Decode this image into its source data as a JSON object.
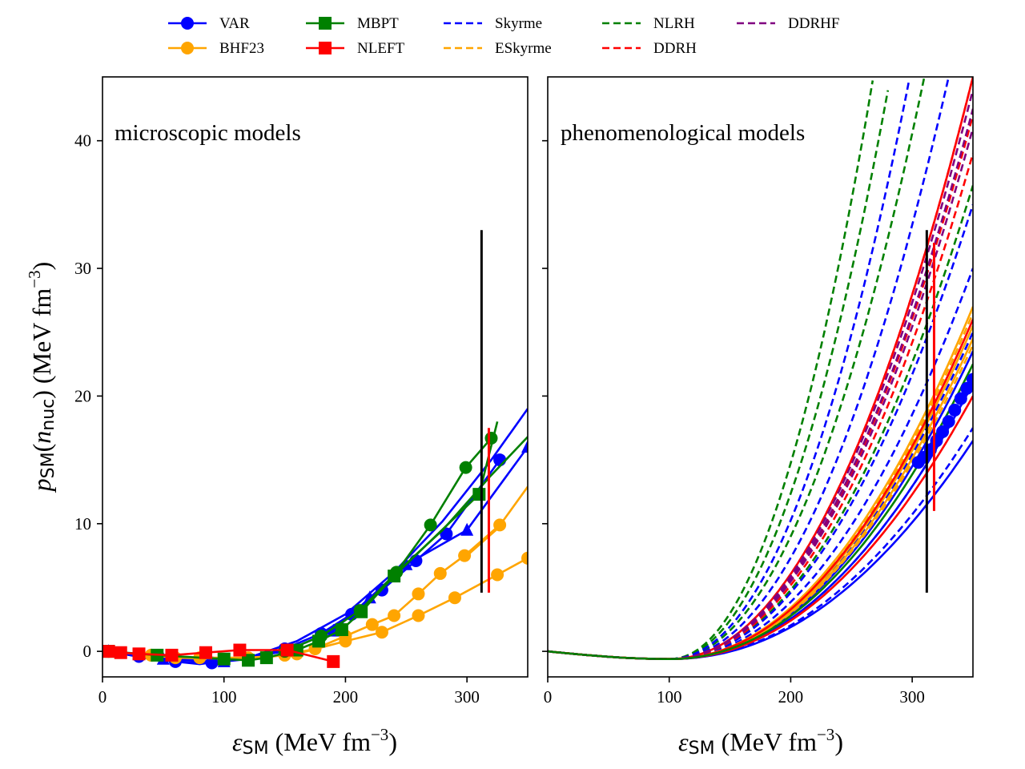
{
  "legend": {
    "placement": "top-center",
    "columns": 5,
    "entries": [
      {
        "label": "VAR",
        "color": "#0000ff",
        "style": "solid",
        "marker": "circle"
      },
      {
        "label": "BHF23",
        "color": "#ffa500",
        "style": "solid",
        "marker": "circle"
      },
      {
        "label": "MBPT",
        "color": "#008000",
        "style": "solid",
        "marker": "square"
      },
      {
        "label": "NLEFT",
        "color": "#ff0000",
        "style": "solid",
        "marker": "square"
      },
      {
        "label": "Skyrme",
        "color": "#0000ff",
        "style": "dashed",
        "marker": "none"
      },
      {
        "label": "ESkyrme",
        "color": "#ffa500",
        "style": "dashed",
        "marker": "none"
      },
      {
        "label": "NLRH",
        "color": "#008000",
        "style": "dashed",
        "marker": "none"
      },
      {
        "label": "DDRH",
        "color": "#ff0000",
        "style": "dashed",
        "marker": "none"
      },
      {
        "label": "DDRHF",
        "color": "#800080",
        "style": "dashed",
        "marker": "none"
      }
    ]
  },
  "axes": {
    "xlabel_sym": "ε",
    "xlabel_sub": "SM",
    "xlabel_unit": " (MeV fm",
    "xlabel_exp": "−3",
    "xlabel_close": ")",
    "ylabel_sym": "p",
    "ylabel_sub": "SM",
    "ylabel_arg_open": "(",
    "ylabel_arg": "n",
    "ylabel_arg_sub": "nuc",
    "ylabel_arg_close": ")",
    "ylabel_unit": " (MeV fm",
    "ylabel_exp": "−3",
    "ylabel_close": ")",
    "xticks": [
      "0",
      "100",
      "200",
      "300"
    ],
    "yticks": [
      "0",
      "10",
      "20",
      "30",
      "40"
    ]
  },
  "chart_data": [
    {
      "type": "line",
      "title": "microscopic models",
      "xlim": [
        0,
        350
      ],
      "ylim": [
        -2,
        45
      ],
      "xticks": [
        0,
        100,
        200,
        300
      ],
      "yticks": [
        0,
        10,
        20,
        30,
        40
      ],
      "vlines": [
        {
          "x": 312,
          "y0": 4.6,
          "y1": 33.0,
          "color": "#000000"
        },
        {
          "x": 318,
          "y0": 4.6,
          "y1": 17.5,
          "color": "#ff0000"
        }
      ],
      "series": [
        {
          "model": "VAR",
          "color": "#0000ff",
          "style": "solid",
          "marker": "circle",
          "x": [
            5,
            30,
            60,
            90,
            120,
            150,
            180,
            205,
            230,
            258,
            283,
            327
          ],
          "y": [
            0,
            -0.4,
            -0.8,
            -0.9,
            -0.6,
            0.2,
            1.4,
            2.9,
            4.8,
            7.1,
            9.2,
            15.0
          ]
        },
        {
          "model": "VAR",
          "color": "#0000ff",
          "style": "solid",
          "marker": "none",
          "x": [
            5,
            40,
            80,
            120,
            160,
            200,
            240,
            280,
            320,
            350
          ],
          "y": [
            0,
            -0.6,
            -1.0,
            -0.5,
            0.8,
            2.9,
            6.2,
            10.2,
            15.0,
            19.0
          ]
        },
        {
          "model": "VAR",
          "color": "#0000ff",
          "style": "solid",
          "marker": "triangle",
          "x": [
            5,
            50,
            100,
            150,
            190,
            220,
            250,
            300,
            350
          ],
          "y": [
            0,
            -0.6,
            -0.8,
            0.0,
            1.6,
            4.2,
            6.8,
            9.5,
            16.0
          ]
        },
        {
          "model": "BHF23",
          "color": "#ffa500",
          "style": "solid",
          "marker": "circle",
          "x": [
            5,
            40,
            80,
            120,
            150,
            175,
            200,
            222,
            240,
            260,
            278,
            298,
            327
          ],
          "y": [
            0,
            -0.3,
            -0.5,
            -0.5,
            -0.3,
            0.2,
            1.2,
            2.1,
            2.8,
            4.5,
            6.1,
            7.5,
            9.9
          ]
        },
        {
          "model": "BHF23",
          "color": "#ffa500",
          "style": "solid",
          "marker": "none",
          "x": [
            300,
            325,
            350
          ],
          "y": [
            7.5,
            9.6,
            12.9
          ]
        },
        {
          "model": "BHF23",
          "color": "#ffa500",
          "style": "solid",
          "marker": "circle",
          "x": [
            5,
            60,
            120,
            160,
            200,
            230,
            260,
            290,
            325,
            350
          ],
          "y": [
            0,
            -0.5,
            -0.6,
            -0.2,
            0.8,
            1.5,
            2.8,
            4.2,
            6.0,
            7.3
          ]
        },
        {
          "model": "MBPT",
          "color": "#008000",
          "style": "solid",
          "marker": "square",
          "x": [
            5,
            45,
            100,
            120,
            135,
            160,
            178,
            197,
            213,
            240,
            310
          ],
          "y": [
            0,
            -0.3,
            -0.6,
            -0.7,
            -0.5,
            0.1,
            0.8,
            1.7,
            3.1,
            5.9,
            12.3
          ]
        },
        {
          "model": "MBPT",
          "color": "#008000",
          "style": "solid",
          "marker": "none",
          "x": [
            310,
            325
          ],
          "y": [
            12.3,
            18.0
          ]
        },
        {
          "model": "MBPT",
          "color": "#008000",
          "style": "solid",
          "marker": "circle",
          "x": [
            150,
            180,
            212,
            242,
            270,
            299,
            320
          ],
          "y": [
            0.0,
            1.2,
            3.2,
            6.2,
            9.9,
            14.4,
            16.7
          ]
        },
        {
          "model": "MBPT",
          "color": "#008000",
          "style": "solid",
          "marker": "none",
          "x": [
            240,
            280,
            320,
            350
          ],
          "y": [
            6.0,
            9.5,
            13.8,
            16.8
          ]
        },
        {
          "model": "NLEFT",
          "color": "#ff0000",
          "style": "solid",
          "marker": "square",
          "x": [
            5,
            15,
            30,
            57,
            85,
            113,
            152,
            190
          ],
          "y": [
            0,
            -0.1,
            -0.2,
            -0.3,
            -0.1,
            0.1,
            0.1,
            -0.8
          ]
        }
      ]
    },
    {
      "type": "line",
      "title": "phenomenological models",
      "xlim": [
        0,
        350
      ],
      "ylim": [
        -2,
        45
      ],
      "xticks": [
        0,
        100,
        200,
        300
      ],
      "yticks": [
        0,
        10,
        20,
        30,
        40
      ],
      "vlines": [
        {
          "x": 312,
          "y0": 4.6,
          "y1": 33.0,
          "color": "#000000"
        },
        {
          "x": 318,
          "y0": 11.0,
          "y1": 32.0,
          "color": "#ff0000"
        }
      ],
      "series": [
        {
          "model": "NLRH",
          "color": "#008000",
          "style": "dashed",
          "marker": "none",
          "x_max": 350,
          "y_at_x_max": 36.5
        },
        {
          "model": "NLRH",
          "color": "#008000",
          "style": "dashed",
          "marker": "none",
          "x_max": 310,
          "y_at_x_max": 45
        },
        {
          "model": "NLRH",
          "color": "#008000",
          "style": "dashed",
          "marker": "none",
          "x_max": 282,
          "y_at_x_max": 45
        },
        {
          "model": "NLRH",
          "color": "#008000",
          "style": "dashed",
          "marker": "none",
          "x_max": 268,
          "y_at_x_max": 45
        },
        {
          "model": "Skyrme",
          "color": "#0000ff",
          "style": "dashed",
          "marker": "none",
          "x_max": 330,
          "y_at_x_max": 45
        },
        {
          "model": "Skyrme",
          "color": "#0000ff",
          "style": "dashed",
          "marker": "none",
          "x_max": 298,
          "y_at_x_max": 45
        },
        {
          "model": "Skyrme",
          "color": "#0000ff",
          "style": "dashed",
          "marker": "none",
          "x_max": 350,
          "y_at_x_max": 35.0
        },
        {
          "model": "Skyrme",
          "color": "#0000ff",
          "style": "dashed",
          "marker": "none",
          "x_max": 350,
          "y_at_x_max": 30.0
        },
        {
          "model": "Skyrme",
          "color": "#0000ff",
          "style": "dashed",
          "marker": "none",
          "x_max": 350,
          "y_at_x_max": 25.0
        },
        {
          "model": "Skyrme",
          "color": "#0000ff",
          "style": "dashed",
          "marker": "none",
          "x_max": 350,
          "y_at_x_max": 21.0
        },
        {
          "model": "Skyrme",
          "color": "#0000ff",
          "style": "dashed",
          "marker": "none",
          "x_max": 350,
          "y_at_x_max": 17.5
        },
        {
          "model": "VAR",
          "color": "#0000ff",
          "style": "solid",
          "marker": "none",
          "x_max": 350,
          "y_at_x_max": 23.5
        },
        {
          "model": "VAR",
          "color": "#0000ff",
          "style": "solid",
          "marker": "none",
          "x_max": 350,
          "y_at_x_max": 21.0
        },
        {
          "model": "VAR",
          "color": "#0000ff",
          "style": "solid",
          "marker": "none",
          "x_max": 350,
          "y_at_x_max": 16.5
        },
        {
          "model": "ESkyrme",
          "color": "#ffa500",
          "style": "dashed",
          "marker": "none",
          "x_max": 350,
          "y_at_x_max": 26.5
        },
        {
          "model": "ESkyrme",
          "color": "#ffa500",
          "style": "dashed",
          "marker": "none",
          "x_max": 350,
          "y_at_x_max": 24.0
        },
        {
          "model": "BHF23",
          "color": "#ffa500",
          "style": "solid",
          "marker": "none",
          "x_max": 350,
          "y_at_x_max": 27.0
        },
        {
          "model": "BHF23",
          "color": "#ffa500",
          "style": "solid",
          "marker": "none",
          "x_max": 350,
          "y_at_x_max": 25.5
        },
        {
          "model": "BHF23",
          "color": "#ffa500",
          "style": "solid",
          "marker": "none",
          "x_max": 350,
          "y_at_x_max": 24.5
        },
        {
          "model": "DDRH",
          "color": "#ff0000",
          "style": "dashed",
          "marker": "none",
          "x_max": 350,
          "y_at_x_max": 39.0
        },
        {
          "model": "DDRH",
          "color": "#ff0000",
          "style": "dashed",
          "marker": "none",
          "x_max": 350,
          "y_at_x_max": 42.0
        },
        {
          "model": "DDRH",
          "color": "#ff0000",
          "style": "dashed",
          "marker": "none",
          "x_max": 350,
          "y_at_x_max": 45
        },
        {
          "model": "NLEFT",
          "color": "#ff0000",
          "style": "solid",
          "marker": "none",
          "x_max": 350,
          "y_at_x_max": 45
        },
        {
          "model": "NLEFT",
          "color": "#ff0000",
          "style": "solid",
          "marker": "none",
          "x_max": 350,
          "y_at_x_max": 26.0
        },
        {
          "model": "NLEFT",
          "color": "#ff0000",
          "style": "solid",
          "marker": "none",
          "x_max": 350,
          "y_at_x_max": 20.0
        },
        {
          "model": "DDRHF",
          "color": "#800080",
          "style": "dashed",
          "marker": "none",
          "x_max": 350,
          "y_at_x_max": 44.0
        },
        {
          "model": "DDRHF",
          "color": "#800080",
          "style": "dashed",
          "marker": "none",
          "x_max": 350,
          "y_at_x_max": 42.5
        },
        {
          "model": "DDRHF",
          "color": "#800080",
          "style": "dashed",
          "marker": "none",
          "x_max": 350,
          "y_at_x_max": 41.0
        },
        {
          "model": "MBPT",
          "color": "#008000",
          "style": "solid",
          "marker": "none",
          "x_max": 350,
          "y_at_x_max": 22.5
        }
      ],
      "markers": [
        {
          "model": "VAR",
          "color": "#0000ff",
          "marker": "circle",
          "x": [
            305,
            310,
            315,
            320,
            325,
            330,
            335,
            340,
            345,
            350
          ],
          "y": [
            14.8,
            15.2,
            15.8,
            16.5,
            17.2,
            18.0,
            18.9,
            19.8,
            20.6,
            21.3
          ]
        }
      ]
    }
  ]
}
